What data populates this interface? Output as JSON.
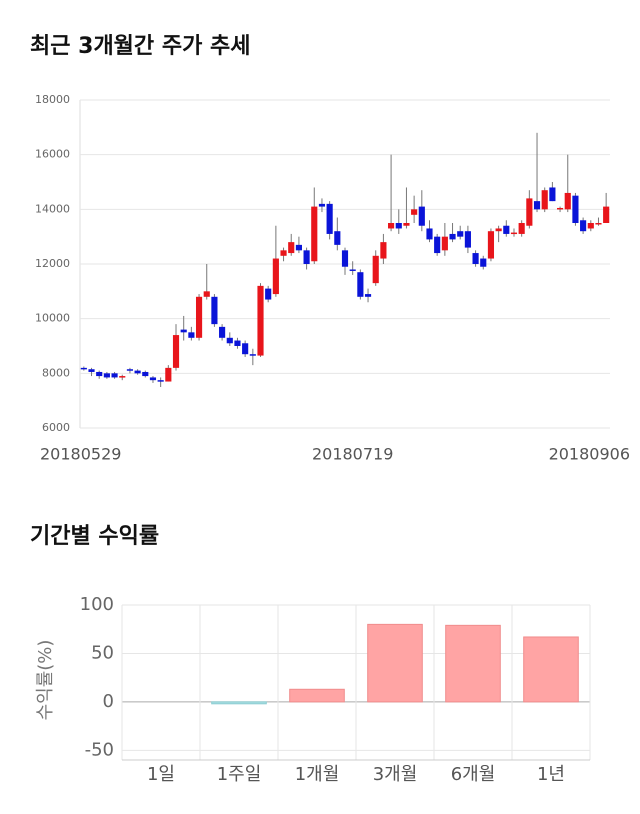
{
  "chart_data": [
    {
      "type": "candlestick",
      "title": "최근 3개월간 주가 추세",
      "categories": [
        "20180529",
        null,
        null,
        null,
        null,
        null,
        null,
        null,
        null,
        null,
        null,
        null,
        null,
        null,
        null,
        null,
        null,
        null,
        null,
        null,
        null,
        null,
        null,
        null,
        null,
        null,
        null,
        null,
        null,
        null,
        null,
        null,
        null,
        null,
        null,
        "20180719",
        null,
        null,
        null,
        null,
        null,
        null,
        null,
        null,
        null,
        null,
        null,
        null,
        null,
        null,
        null,
        null,
        null,
        null,
        null,
        null,
        null,
        null,
        null,
        null,
        null,
        null,
        null,
        null,
        null,
        null,
        null,
        null,
        "20180906"
      ],
      "open": [
        8200,
        8150,
        8050,
        8000,
        8000,
        7850,
        8150,
        8100,
        8050,
        7850,
        7750,
        7700,
        8200,
        9600,
        9500,
        9300,
        10800,
        10800,
        9700,
        9300,
        9200,
        9100,
        8700,
        8650,
        11100,
        10900,
        12300,
        12400,
        12700,
        12500,
        12100,
        14200,
        14200,
        13200,
        12500,
        11800,
        11700,
        10900,
        11300,
        12200,
        13300,
        13500,
        13400,
        13800,
        14100,
        13300,
        13000,
        12500,
        13100,
        13200,
        13200,
        12400,
        12200,
        12200,
        13200,
        13400,
        13100,
        13100,
        13400,
        14300,
        14000,
        14800,
        14000,
        14000,
        14500,
        13600,
        13300,
        13500,
        13500
      ],
      "high": [
        8250,
        8200,
        8100,
        8050,
        8050,
        7950,
        8200,
        8150,
        8100,
        7900,
        7850,
        8300,
        9800,
        10100,
        9700,
        10900,
        12000,
        10900,
        9800,
        9500,
        9300,
        9200,
        8900,
        11300,
        11200,
        13400,
        12600,
        13100,
        13000,
        12600,
        14800,
        14400,
        14300,
        13700,
        12600,
        12100,
        11800,
        11100,
        12500,
        13100,
        16000,
        14000,
        14800,
        14500,
        14700,
        13600,
        13100,
        13500,
        13500,
        13400,
        13400,
        12500,
        12300,
        13300,
        13400,
        13600,
        13300,
        13600,
        14700,
        16800,
        14800,
        15000,
        14100,
        16000,
        14600,
        13700,
        13600,
        13700,
        14600
      ],
      "low": [
        8100,
        7900,
        7800,
        7800,
        7800,
        7750,
        8000,
        7950,
        7850,
        7650,
        7500,
        7700,
        8100,
        9200,
        9200,
        9200,
        10700,
        9700,
        9200,
        9000,
        8900,
        8600,
        8300,
        8600,
        10600,
        10800,
        12100,
        12300,
        12400,
        11800,
        12000,
        13900,
        12900,
        12500,
        11600,
        11600,
        10700,
        10600,
        11200,
        12000,
        13200,
        13100,
        13300,
        13500,
        13200,
        12800,
        12300,
        12300,
        12800,
        12900,
        12400,
        11900,
        11800,
        12100,
        12800,
        13000,
        13000,
        13000,
        13300,
        13900,
        13900,
        14300,
        13900,
        13900,
        13400,
        13100,
        13200,
        13400,
        13500
      ],
      "close": [
        8150,
        8050,
        7900,
        7850,
        7850,
        7900,
        8100,
        8000,
        7900,
        7750,
        7700,
        8200,
        9400,
        9500,
        9300,
        10800,
        11000,
        9800,
        9300,
        9100,
        9000,
        8700,
        8650,
        11200,
        10700,
        12200,
        12500,
        12800,
        12500,
        12000,
        14100,
        14100,
        13100,
        12700,
        11900,
        11750,
        10800,
        10800,
        12300,
        12800,
        13500,
        13300,
        13500,
        14000,
        13400,
        12900,
        12400,
        13000,
        12900,
        13000,
        12600,
        12000,
        11900,
        13200,
        13300,
        13100,
        13150,
        13500,
        14400,
        14000,
        14700,
        14300,
        14050,
        14600,
        13500,
        13200,
        13500,
        13500,
        14100
      ],
      "up_color": "#e8151b",
      "down_color": "#0a14d8",
      "ylim": [
        6000,
        18000
      ],
      "yticks": [
        6000,
        8000,
        10000,
        12000,
        14000,
        16000,
        18000
      ],
      "grid": true
    },
    {
      "type": "bar",
      "title": "기간별 수익률",
      "y_label": "수익률(%)",
      "categories": [
        "1일",
        "1주일",
        "1개월",
        "3개월",
        "6개월",
        "1년"
      ],
      "values": [
        0,
        -2,
        13,
        80,
        79,
        67
      ],
      "positive_color": "#ffa4a4",
      "negative_color": "#a9dfe2",
      "ylim": [
        -60,
        100
      ],
      "yticks": [
        -50,
        0,
        50,
        100
      ],
      "grid": true
    }
  ]
}
